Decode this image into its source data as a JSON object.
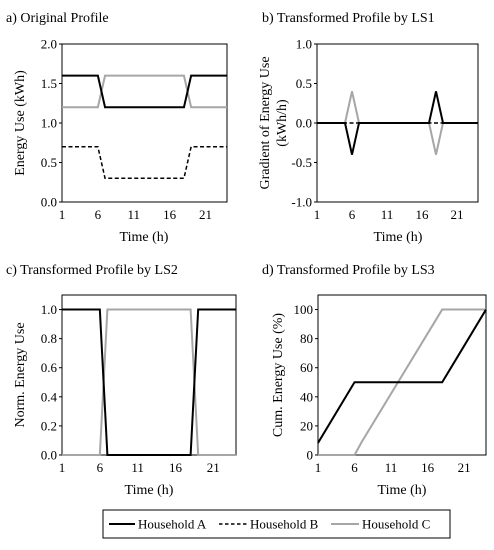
{
  "legend": {
    "entries": [
      {
        "label": "Household A",
        "color": "#000000",
        "dash": "solid"
      },
      {
        "label": "Household B",
        "color": "#000000",
        "dash": "dashed"
      },
      {
        "label": "Household C",
        "color": "#a6a6a6",
        "dash": "solid"
      }
    ],
    "placement": "bottom"
  },
  "chart_data": [
    {
      "type": "line",
      "title": "a) Original Profile",
      "xlabel": "Time (h)",
      "ylabel": "Energy Use (kWh)",
      "xlim": [
        1,
        24
      ],
      "ylim": [
        0,
        2
      ],
      "xticks": [
        1,
        6,
        11,
        16,
        21
      ],
      "yticks": [
        "0.0",
        "0.5",
        "1.0",
        "1.5",
        "2.0"
      ],
      "grid": false,
      "series": [
        {
          "name": "Household A",
          "color": "#000000",
          "dash": "solid",
          "x": [
            1,
            6,
            7,
            18,
            19,
            24
          ],
          "y": [
            1.6,
            1.6,
            1.2,
            1.2,
            1.6,
            1.6
          ]
        },
        {
          "name": "Household B",
          "color": "#000000",
          "dash": "dashed",
          "x": [
            1,
            6,
            7,
            18,
            19,
            24
          ],
          "y": [
            0.7,
            0.7,
            0.3,
            0.3,
            0.7,
            0.7
          ]
        },
        {
          "name": "Household C",
          "color": "#a6a6a6",
          "dash": "solid",
          "x": [
            1,
            6,
            7,
            18,
            19,
            24
          ],
          "y": [
            1.2,
            1.2,
            1.6,
            1.6,
            1.2,
            1.2
          ]
        }
      ]
    },
    {
      "type": "line",
      "title": "b) Transformed Profile by LS1",
      "xlabel": "Time (h)",
      "ylabel": "Gradient of Energy Use (kWh/h)",
      "ylabel_lines": [
        "Gradient of Energy Use",
        "(kWh/h)"
      ],
      "xlim": [
        1,
        24
      ],
      "ylim": [
        -1,
        1
      ],
      "xticks": [
        1,
        6,
        11,
        16,
        21
      ],
      "yticks": [
        "-1.0",
        "-0.5",
        "0.0",
        "0.5",
        "1.0"
      ],
      "grid": false,
      "series": [
        {
          "name": "Household A",
          "color": "#000000",
          "dash": "solid",
          "x": [
            1,
            5,
            6,
            7,
            17,
            18,
            19,
            24
          ],
          "y": [
            0,
            0,
            -0.4,
            0,
            0,
            0.4,
            0,
            0
          ]
        },
        {
          "name": "Household B",
          "color": "#000000",
          "dash": "dashed",
          "x": [
            1,
            24
          ],
          "y": [
            0,
            0
          ]
        },
        {
          "name": "Household C",
          "color": "#a6a6a6",
          "dash": "solid",
          "x": [
            1,
            5,
            6,
            7,
            17,
            18,
            19,
            24
          ],
          "y": [
            0,
            0,
            0.4,
            0,
            0,
            -0.4,
            0,
            0
          ]
        }
      ]
    },
    {
      "type": "line",
      "title": "c) Transformed Profile by LS2",
      "xlabel": "Time (h)",
      "ylabel": "Norm. Energy Use",
      "xlim": [
        1,
        24
      ],
      "ylim": [
        0,
        1.1
      ],
      "xticks": [
        1,
        6,
        11,
        16,
        21
      ],
      "yticks": [
        "0.0",
        "0.2",
        "0.4",
        "0.6",
        "0.8",
        "1.0"
      ],
      "grid": false,
      "series": [
        {
          "name": "Household A",
          "color": "#000000",
          "dash": "solid",
          "x": [
            1,
            6,
            7,
            18,
            19,
            24
          ],
          "y": [
            1,
            1,
            0,
            0,
            1,
            1
          ]
        },
        {
          "name": "Household C",
          "color": "#a6a6a6",
          "dash": "solid",
          "x": [
            1,
            6,
            7,
            18,
            19,
            24
          ],
          "y": [
            0,
            0,
            1,
            1,
            0,
            0
          ]
        }
      ]
    },
    {
      "type": "line",
      "title": "d) Transformed Profile by LS3",
      "xlabel": "Time (h)",
      "ylabel": "Cum. Energy Use (%)",
      "xlim": [
        1,
        24
      ],
      "ylim": [
        0,
        110
      ],
      "xticks": [
        1,
        6,
        11,
        16,
        21
      ],
      "yticks": [
        "0",
        "20",
        "40",
        "60",
        "80",
        "100"
      ],
      "grid": false,
      "series": [
        {
          "name": "Household A",
          "color": "#000000",
          "dash": "solid",
          "x": [
            1,
            6,
            7,
            18,
            19,
            24
          ],
          "y": [
            8.3,
            50,
            50,
            50,
            58.3,
            100
          ]
        },
        {
          "name": "Household C",
          "color": "#a6a6a6",
          "dash": "solid",
          "x": [
            1,
            6,
            7,
            18,
            19,
            24
          ],
          "y": [
            0,
            0,
            9.1,
            100,
            100,
            100
          ]
        }
      ]
    }
  ]
}
